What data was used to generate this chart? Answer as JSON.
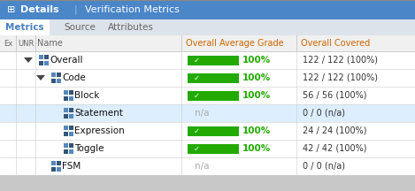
{
  "title_bar_color": "#4a86c8",
  "title_text_color": "#ffffff",
  "tab_bar_color": "#dde3ea",
  "active_tab_text_color": "#4a7ebf",
  "inactive_tab_text_color": "#666666",
  "header_text_color": "#cc6600",
  "rows": [
    {
      "indent": 1,
      "has_triangle": true,
      "name": "Overall",
      "grade_bar": true,
      "covered": "122 / 122 (100%)",
      "bg": "#ffffff"
    },
    {
      "indent": 2,
      "has_triangle": true,
      "name": "Code",
      "grade_bar": true,
      "covered": "122 / 122 (100%)",
      "bg": "#ffffff"
    },
    {
      "indent": 3,
      "has_triangle": false,
      "name": "Block",
      "grade_bar": true,
      "covered": "56 / 56 (100%)",
      "bg": "#ffffff"
    },
    {
      "indent": 3,
      "has_triangle": false,
      "name": "Statement",
      "grade_bar": false,
      "covered": "0 / 0 (n/a)",
      "bg": "#ddeeff"
    },
    {
      "indent": 3,
      "has_triangle": false,
      "name": "Expression",
      "grade_bar": true,
      "covered": "24 / 24 (100%)",
      "bg": "#ffffff"
    },
    {
      "indent": 3,
      "has_triangle": false,
      "name": "Toggle",
      "grade_bar": true,
      "covered": "42 / 42 (100%)",
      "bg": "#ffffff"
    },
    {
      "indent": 2,
      "has_triangle": false,
      "name": "FSM",
      "grade_bar": false,
      "covered": "0 / 0 (n/a)",
      "bg": "#ffffff"
    }
  ],
  "green_bar_color": "#22aa00",
  "grade_text_color": "#22aa00",
  "na_text_color": "#aaaaaa",
  "covered_text_color": "#333333",
  "divider_color": "#cccccc",
  "icon_colors": [
    "#5588bb",
    "#335577",
    "#7799bb",
    "#446688"
  ]
}
